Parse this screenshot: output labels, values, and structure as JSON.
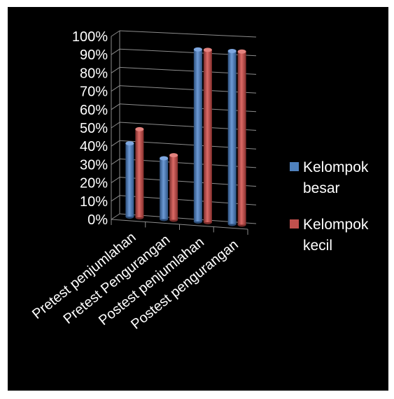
{
  "chart_data": {
    "type": "bar",
    "subtype": "3d-clustered-column",
    "categories": [
      "Pretest penjumlahan",
      "Pretest Pengurangan",
      "Postest penjumlahan",
      "Postest pengurangan"
    ],
    "series": [
      {
        "name": "Kelompok besar",
        "values": [
          40,
          33,
          93,
          93
        ],
        "color": "#4f81bd",
        "legend_lines": [
          "Kelompok",
          "besar"
        ]
      },
      {
        "name": "Kelompok kecil",
        "values": [
          48,
          35,
          93,
          93
        ],
        "color": "#c0504d",
        "legend_lines": [
          "Kelompok",
          "kecil"
        ]
      }
    ],
    "yticks": [
      "0%",
      "10%",
      "20%",
      "30%",
      "40%",
      "50%",
      "60%",
      "70%",
      "80%",
      "90%",
      "100%"
    ],
    "ylim": [
      0,
      100
    ],
    "grid": true,
    "legend_position": "right",
    "background": "#000000",
    "text_color": "#ffffff"
  }
}
